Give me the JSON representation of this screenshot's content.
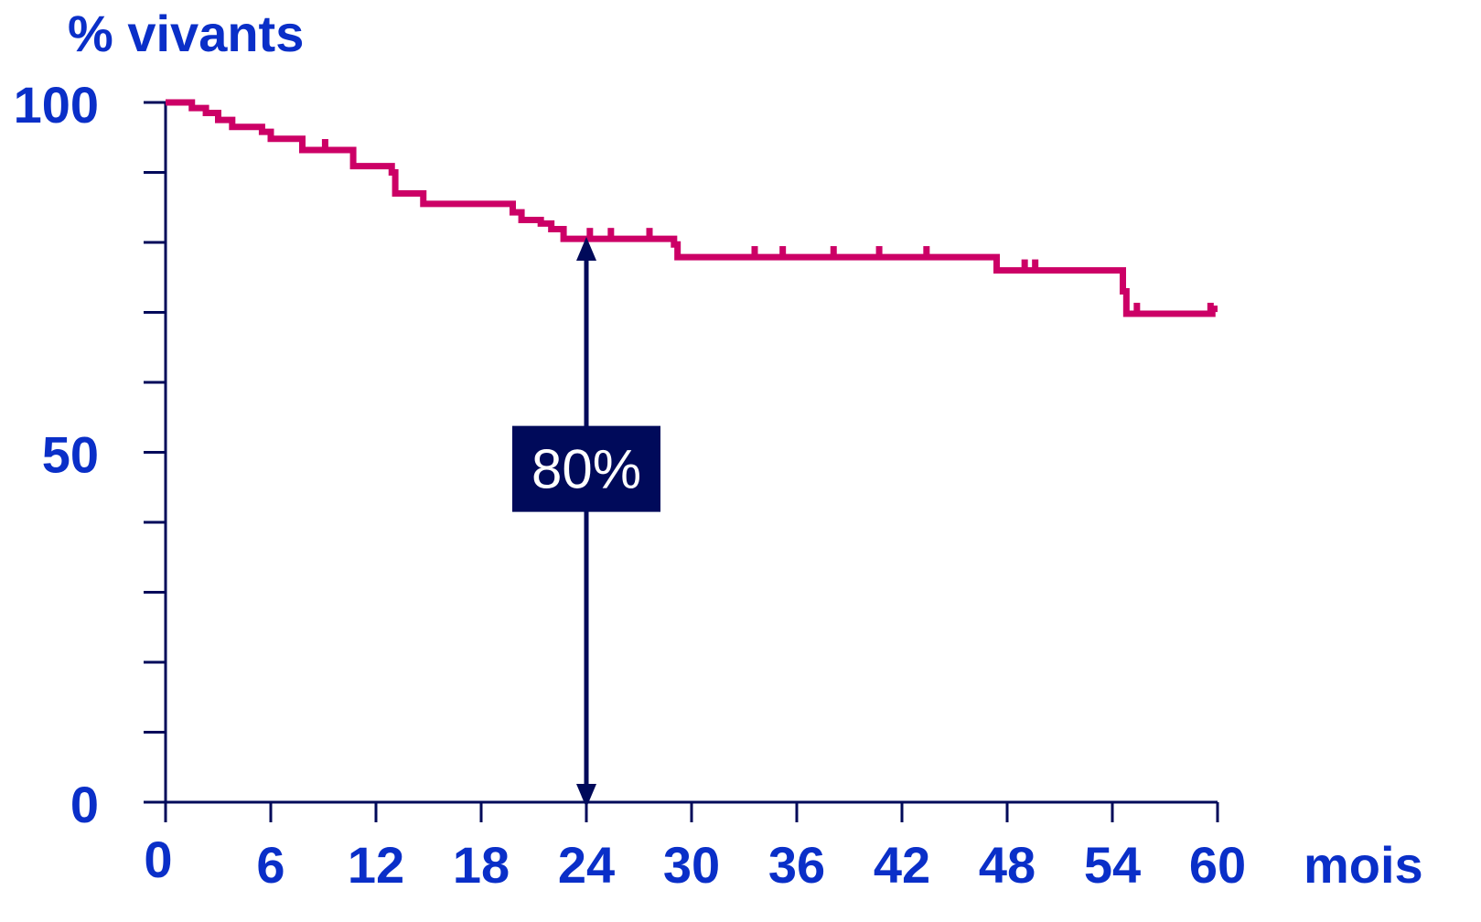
{
  "chart_data": {
    "type": "line",
    "title": "",
    "ylabel": "% vivants",
    "xlabel": "mois",
    "xlim": [
      0,
      60
    ],
    "ylim": [
      0,
      100
    ],
    "x_ticks": [
      0,
      6,
      12,
      18,
      24,
      30,
      36,
      42,
      48,
      54,
      60
    ],
    "x_tick_labels": [
      "0",
      "6",
      "12",
      "18",
      "24",
      "30",
      "36",
      "42",
      "48",
      "54",
      "60"
    ],
    "y_ticks": [
      0,
      10,
      20,
      30,
      40,
      50,
      60,
      70,
      80,
      90,
      100
    ],
    "y_tick_labels": [
      {
        "value": 0,
        "label": "0"
      },
      {
        "value": 50,
        "label": "50"
      },
      {
        "value": 100,
        "label": "100"
      }
    ],
    "grid": false,
    "series": [
      {
        "color": "#cc0066",
        "step": true,
        "x": [
          0,
          1.5,
          2.3,
          3.0,
          3.8,
          5.5,
          6.0,
          7.8,
          10.7,
          12.9,
          13.1,
          14.7,
          19.8,
          20.3,
          21.4,
          22.0,
          22.7,
          29.0,
          29.2,
          47.0,
          47.4,
          54.4,
          54.6,
          54.8,
          57.0,
          59.0,
          59.7
        ],
        "y": [
          100,
          99.2,
          98.5,
          97.5,
          96.5,
          95.8,
          94.8,
          93.2,
          90.9,
          90.0,
          87.0,
          85.5,
          84.3,
          83.2,
          82.7,
          81.9,
          80.5,
          79.7,
          77.9,
          77.9,
          76.0,
          76.0,
          73.0,
          69.8,
          69.8,
          69.8,
          70.5
        ],
        "censor_x": [
          9.1,
          24.2,
          25.4,
          27.6,
          33.6,
          35.2,
          38.1,
          40.7,
          43.4,
          49.0,
          49.6,
          55.4,
          59.6
        ]
      }
    ],
    "annotations": [
      {
        "x": 24,
        "y_from": 0,
        "y_to": 80,
        "label": "80%",
        "label_y": 47.5,
        "color": "#000a5a"
      }
    ]
  }
}
